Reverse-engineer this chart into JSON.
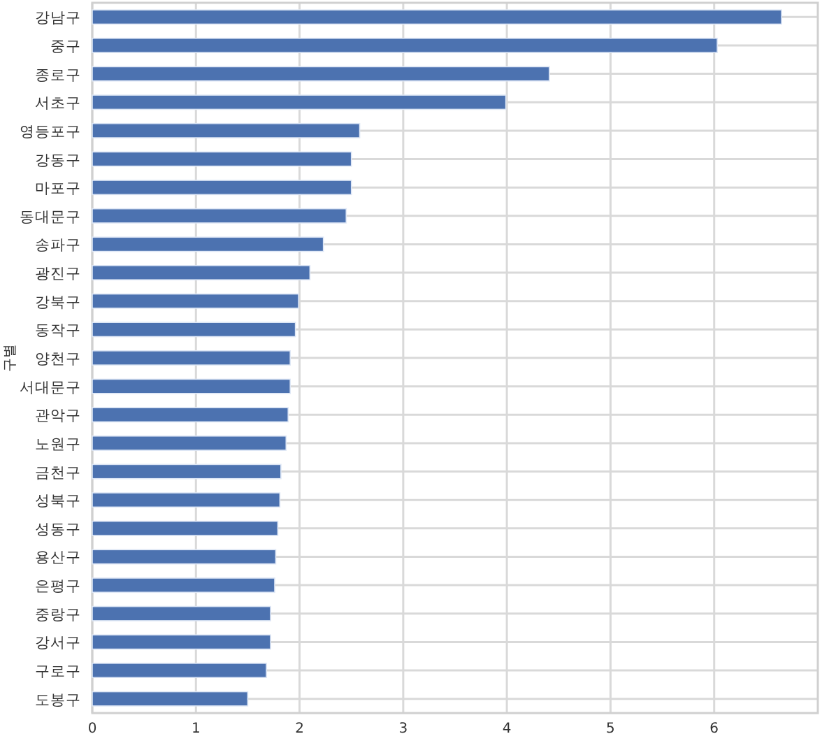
{
  "chart_data": {
    "type": "bar",
    "orientation": "horizontal",
    "ylabel": "구별",
    "categories": [
      "강남구",
      "중구",
      "종로구",
      "서초구",
      "영등포구",
      "강동구",
      "마포구",
      "동대문구",
      "송파구",
      "광진구",
      "강북구",
      "동작구",
      "양천구",
      "서대문구",
      "관악구",
      "노원구",
      "금천구",
      "성북구",
      "성동구",
      "용산구",
      "은평구",
      "중랑구",
      "강서구",
      "구로구",
      "도봉구"
    ],
    "values": [
      6.65,
      6.03,
      4.41,
      3.99,
      2.58,
      2.5,
      2.5,
      2.45,
      2.23,
      2.1,
      1.99,
      1.96,
      1.91,
      1.91,
      1.89,
      1.87,
      1.82,
      1.81,
      1.79,
      1.77,
      1.76,
      1.72,
      1.72,
      1.68,
      1.5
    ],
    "color": "#4c72b0",
    "xlim": [
      0,
      7
    ],
    "xticks": [
      0,
      1,
      2,
      3,
      4,
      5,
      6
    ],
    "grid": true
  }
}
